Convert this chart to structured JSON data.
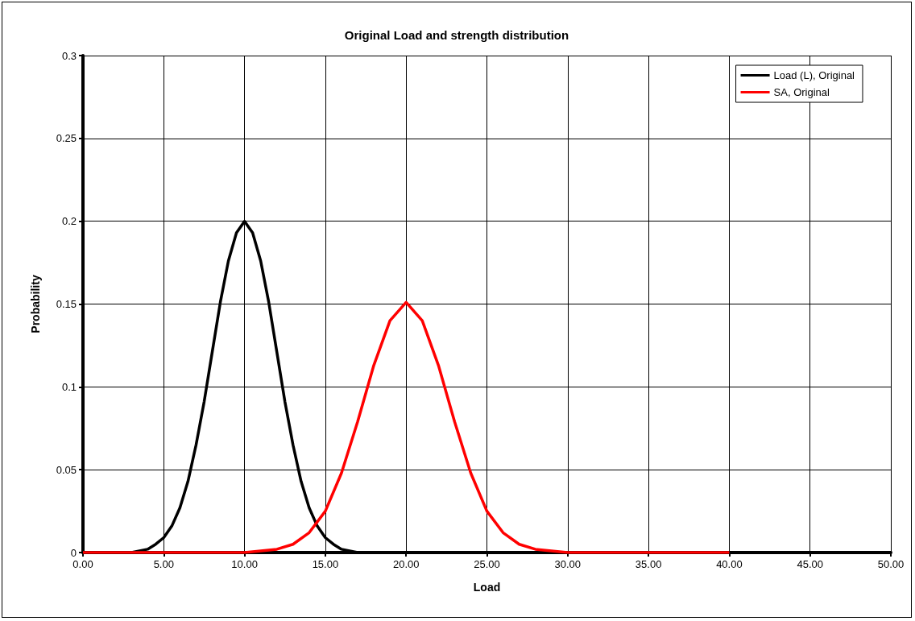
{
  "chart_data": {
    "type": "line",
    "title": "Original Load and strength distribution",
    "xlabel": "Load",
    "ylabel": "Probability",
    "xlim": [
      0,
      50
    ],
    "xticks": [
      {
        "value": 0,
        "label": "0.00"
      },
      {
        "value": 5,
        "label": "5.00"
      },
      {
        "value": 10,
        "label": "10.00"
      },
      {
        "value": 15,
        "label": "15.00"
      },
      {
        "value": 20,
        "label": "20.00"
      },
      {
        "value": 25,
        "label": "25.00"
      },
      {
        "value": 30,
        "label": "30.00"
      },
      {
        "value": 35,
        "label": "35.00"
      },
      {
        "value": 40,
        "label": "40.00"
      },
      {
        "value": 45,
        "label": "45.00"
      },
      {
        "value": 50,
        "label": "50.00"
      }
    ],
    "ylim": [
      0,
      0.3
    ],
    "yticks": [
      0,
      0.05,
      0.1,
      0.15,
      0.2,
      0.25,
      0.3
    ],
    "grid": true,
    "legend": "top right",
    "marker": "none",
    "line_style": "solid",
    "series": [
      {
        "name": "Load (L), Original",
        "color": "#000000",
        "x": [
          0,
          1,
          2,
          3,
          3.5,
          4,
          4.5,
          5,
          5.5,
          6,
          6.5,
          7,
          7.5,
          8,
          8.5,
          9,
          9.5,
          10,
          10.5,
          11,
          11.5,
          12,
          12.5,
          13,
          13.5,
          14,
          14.5,
          15,
          15.5,
          16,
          16.5,
          17,
          18,
          20,
          25,
          30,
          35,
          40
        ],
        "values": [
          0,
          0,
          0,
          0.0,
          0.001,
          0.002,
          0.005,
          0.009,
          0.016,
          0.027,
          0.043,
          0.065,
          0.091,
          0.121,
          0.151,
          0.176,
          0.193,
          0.2,
          0.193,
          0.176,
          0.151,
          0.121,
          0.091,
          0.065,
          0.043,
          0.027,
          0.016,
          0.009,
          0.005,
          0.002,
          0.001,
          0.0,
          0,
          0,
          0,
          0,
          0,
          0
        ]
      },
      {
        "name": "SA, Original",
        "color": "#ff0000",
        "x": [
          0,
          5,
          10,
          11,
          12,
          13,
          14,
          15,
          16,
          17,
          18,
          19,
          20,
          21,
          22,
          23,
          24,
          25,
          26,
          27,
          28,
          29,
          30,
          35,
          40
        ],
        "values": [
          0,
          0,
          0,
          0.001,
          0.002,
          0.005,
          0.012,
          0.025,
          0.048,
          0.079,
          0.113,
          0.14,
          0.151,
          0.14,
          0.113,
          0.079,
          0.048,
          0.025,
          0.012,
          0.005,
          0.002,
          0.001,
          0,
          0,
          0
        ]
      }
    ]
  }
}
